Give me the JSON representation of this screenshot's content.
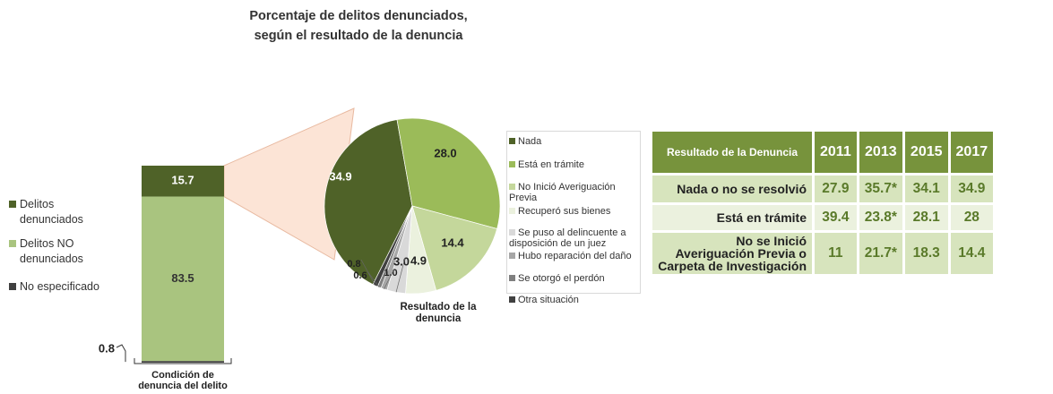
{
  "chart_data": [
    {
      "type": "stacked_bar",
      "xlabel": "Condición de denuncia del delito",
      "ylim": [
        0,
        100
      ],
      "series": [
        {
          "name": "Delitos denunciados",
          "color": "#4f6228",
          "values": [
            15.7
          ]
        },
        {
          "name": "Delitos NO denunciados",
          "color": "#a9c47f",
          "values": [
            83.5
          ]
        },
        {
          "name": "No especificado",
          "color": "#404040",
          "values": [
            0.8
          ]
        }
      ]
    },
    {
      "type": "pie",
      "title": [
        "Porcentaje de delitos denunciados,",
        "según el resultado de la denuncia"
      ],
      "xlabel": "Resultado de la denuncia",
      "categories": [
        "Nada",
        "Está en trámite",
        "No Inició Averiguación Previa",
        "Recuperó sus bienes",
        "Se puso al delincuente a disposición de un juez",
        "Hubo reparación del daño",
        "Se otorgó el perdón",
        "Otra situación"
      ],
      "values": [
        34.9,
        28.0,
        14.4,
        4.9,
        3.0,
        1.0,
        0.6,
        0.8
      ],
      "value_labels": [
        "34.9",
        "28.0",
        "14.4",
        "4.9",
        "3.0",
        "1.0",
        "0.6",
        "0.8"
      ],
      "colors": [
        "#4f6228",
        "#9bbb59",
        "#c4d79b",
        "#ebf1de",
        "#d9d9d9",
        "#a6a6a6",
        "#7f7f7f",
        "#404040"
      ]
    }
  ],
  "table": {
    "columns": [
      "Resultado de la Denuncia",
      "2011",
      "2013",
      "2015",
      "2017"
    ],
    "rows": [
      {
        "label": "Nada o no se resolvió",
        "values": [
          27.9,
          "35.7*",
          34.1,
          34.9
        ]
      },
      {
        "label": "Está en trámite",
        "values": [
          39.4,
          "23.8*",
          28.1,
          28.0
        ]
      },
      {
        "label": "No se Inició Averiguación Previa o Carpeta de Investigación",
        "values": [
          11.0,
          "21.7*",
          18.3,
          14.4
        ]
      }
    ]
  }
}
